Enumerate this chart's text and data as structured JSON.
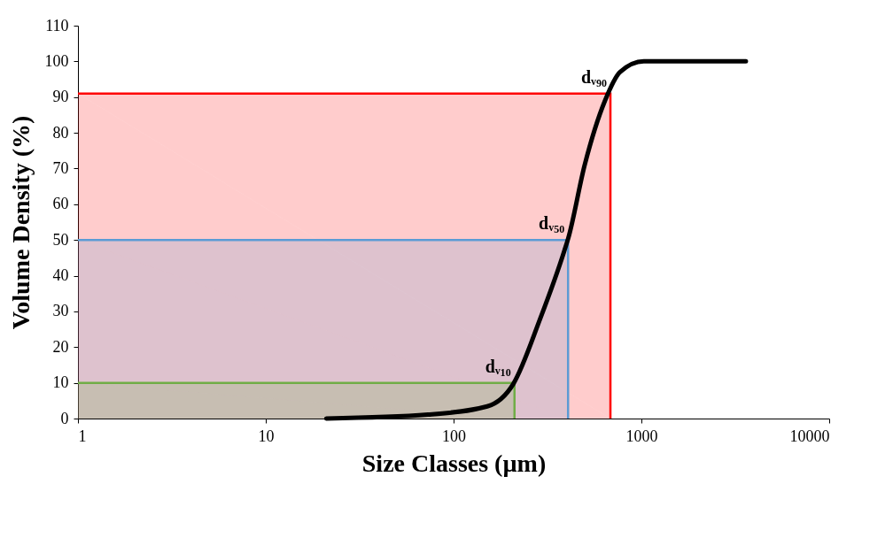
{
  "chart_data": {
    "type": "line",
    "xlabel": "Size Classes (µm)",
    "ylabel": "Volume Density (%)",
    "log": "x",
    "xlim": [
      1,
      10000
    ],
    "xticks": [
      1,
      10,
      100,
      1000,
      10000
    ],
    "ylim": [
      0,
      110
    ],
    "yticks": [
      0,
      10,
      20,
      30,
      40,
      50,
      60,
      70,
      80,
      90,
      100,
      110
    ],
    "grid": false,
    "series": [
      {
        "type": "area",
        "color": "#ff0000",
        "x": [
          1,
          684,
          684
        ],
        "values": [
          91,
          91,
          0
        ]
      },
      {
        "type": "area",
        "color": "#5b9bd5",
        "x": [
          1,
          407,
          407
        ],
        "values": [
          50,
          50,
          0
        ]
      },
      {
        "type": "area",
        "color": "#70ad47",
        "x": [
          1,
          211,
          211
        ],
        "values": [
          10,
          10,
          0
        ]
      },
      {
        "color": "#000000",
        "x": [
          21,
          73,
          151,
          208,
          288,
          389,
          408,
          499,
          640,
          770,
          1030,
          3600
        ],
        "values": [
          0,
          1.1,
          3.4,
          9.7,
          27.7,
          47,
          50.5,
          71,
          89,
          97,
          100,
          100
        ]
      }
    ],
    "annotations": [
      {
        "text": "dᵥ₉₀",
        "x": 684,
        "y": 91
      },
      {
        "text": "dᵥ₅₀",
        "x": 407,
        "y": 50
      },
      {
        "text": "dᵥ₁₀",
        "x": 211,
        "y": 10
      }
    ]
  }
}
